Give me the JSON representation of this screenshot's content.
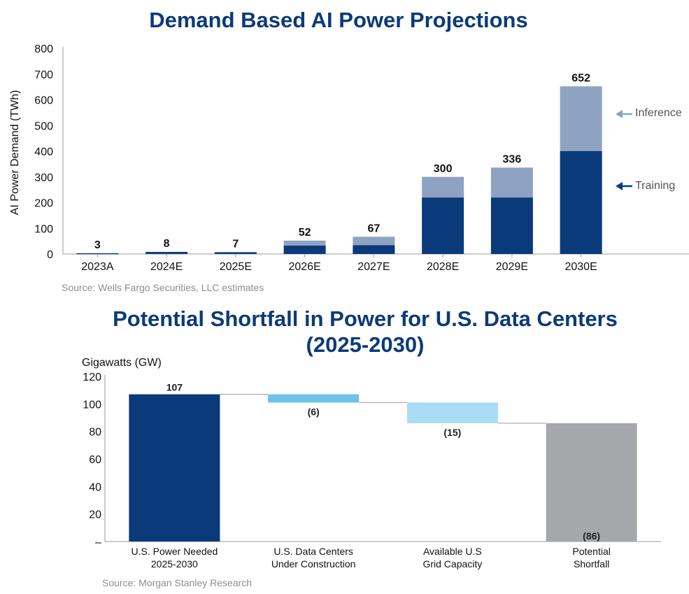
{
  "chart_data": [
    {
      "type": "bar",
      "stacked": true,
      "title": "Demand Based AI Power Projections",
      "xlabel": "",
      "ylabel": "AI Power Demand (TWh)",
      "ylim": [
        0,
        800
      ],
      "yticks": [
        "0",
        "100",
        "200",
        "300",
        "400",
        "500",
        "600",
        "700",
        "800"
      ],
      "categories": [
        "2023A",
        "2024E",
        "2025E",
        "2026E",
        "2027E",
        "2028E",
        "2029E",
        "2030E"
      ],
      "series": [
        {
          "name": "Training",
          "color": "#0a3a7a",
          "values": [
            3,
            8,
            7,
            33,
            34,
            220,
            220,
            400
          ]
        },
        {
          "name": "Inference",
          "color": "#8ea3c2",
          "values": [
            0,
            0,
            0,
            19,
            33,
            80,
            116,
            252
          ]
        }
      ],
      "totals": [
        "3",
        "8",
        "7",
        "52",
        "67",
        "300",
        "336",
        "652"
      ],
      "legend": [
        "Inference",
        "Training"
      ],
      "source": "Source: Wells Fargo Securities, LLC estimates"
    },
    {
      "type": "waterfall",
      "title_lines": [
        "Potential Shortfall in Power for U.S. Data Centers",
        "(2025-2030)"
      ],
      "ylabel": "Gigawatts (GW)",
      "ylim": [
        0,
        120
      ],
      "yticks": [
        "–",
        "20",
        "40",
        "60",
        "80",
        "100",
        "120"
      ],
      "categories": [
        [
          "U.S. Power Needed",
          "2025-2030"
        ],
        [
          "U.S. Data Centers",
          "Under Construction"
        ],
        [
          "Available U.S",
          "Grid Capacity"
        ],
        [
          "Potential",
          "Shortfall"
        ]
      ],
      "bars": [
        {
          "start": 0,
          "end": 107,
          "label": "107",
          "color": "#0a3a7a"
        },
        {
          "start": 107,
          "end": 101,
          "label": "(6)",
          "color": "#6ec3e8"
        },
        {
          "start": 101,
          "end": 86,
          "label": "(15)",
          "color": "#a9dcf4"
        },
        {
          "start": 0,
          "end": 86,
          "label": "(86)",
          "color": "#a6a7ab"
        }
      ],
      "source": "Source: Morgan Stanley Research"
    }
  ]
}
